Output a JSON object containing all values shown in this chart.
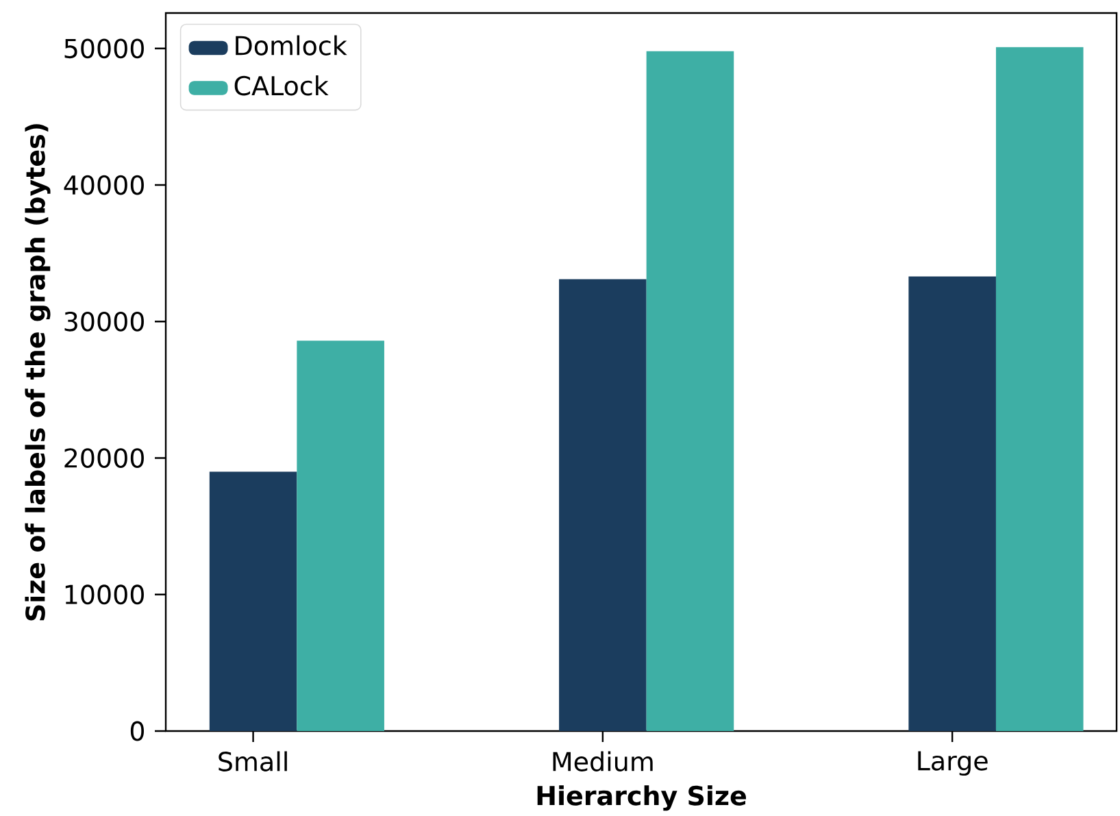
{
  "chart_data": {
    "type": "bar",
    "xlabel": "Hierarchy Size",
    "ylabel": "Size of labels of the graph (bytes)",
    "categories": [
      "Small",
      "Medium",
      "Large"
    ],
    "series": [
      {
        "name": "Domlock",
        "color": "#1b3d5e",
        "values": [
          19000,
          33100,
          33300
        ]
      },
      {
        "name": "CALock",
        "color": "#3eafa5",
        "values": [
          28600,
          49800,
          50100
        ]
      }
    ],
    "ylim": [
      0,
      52600
    ],
    "yticks": [
      0,
      10000,
      20000,
      30000,
      40000,
      50000
    ],
    "grid": false,
    "legend": "top left"
  }
}
